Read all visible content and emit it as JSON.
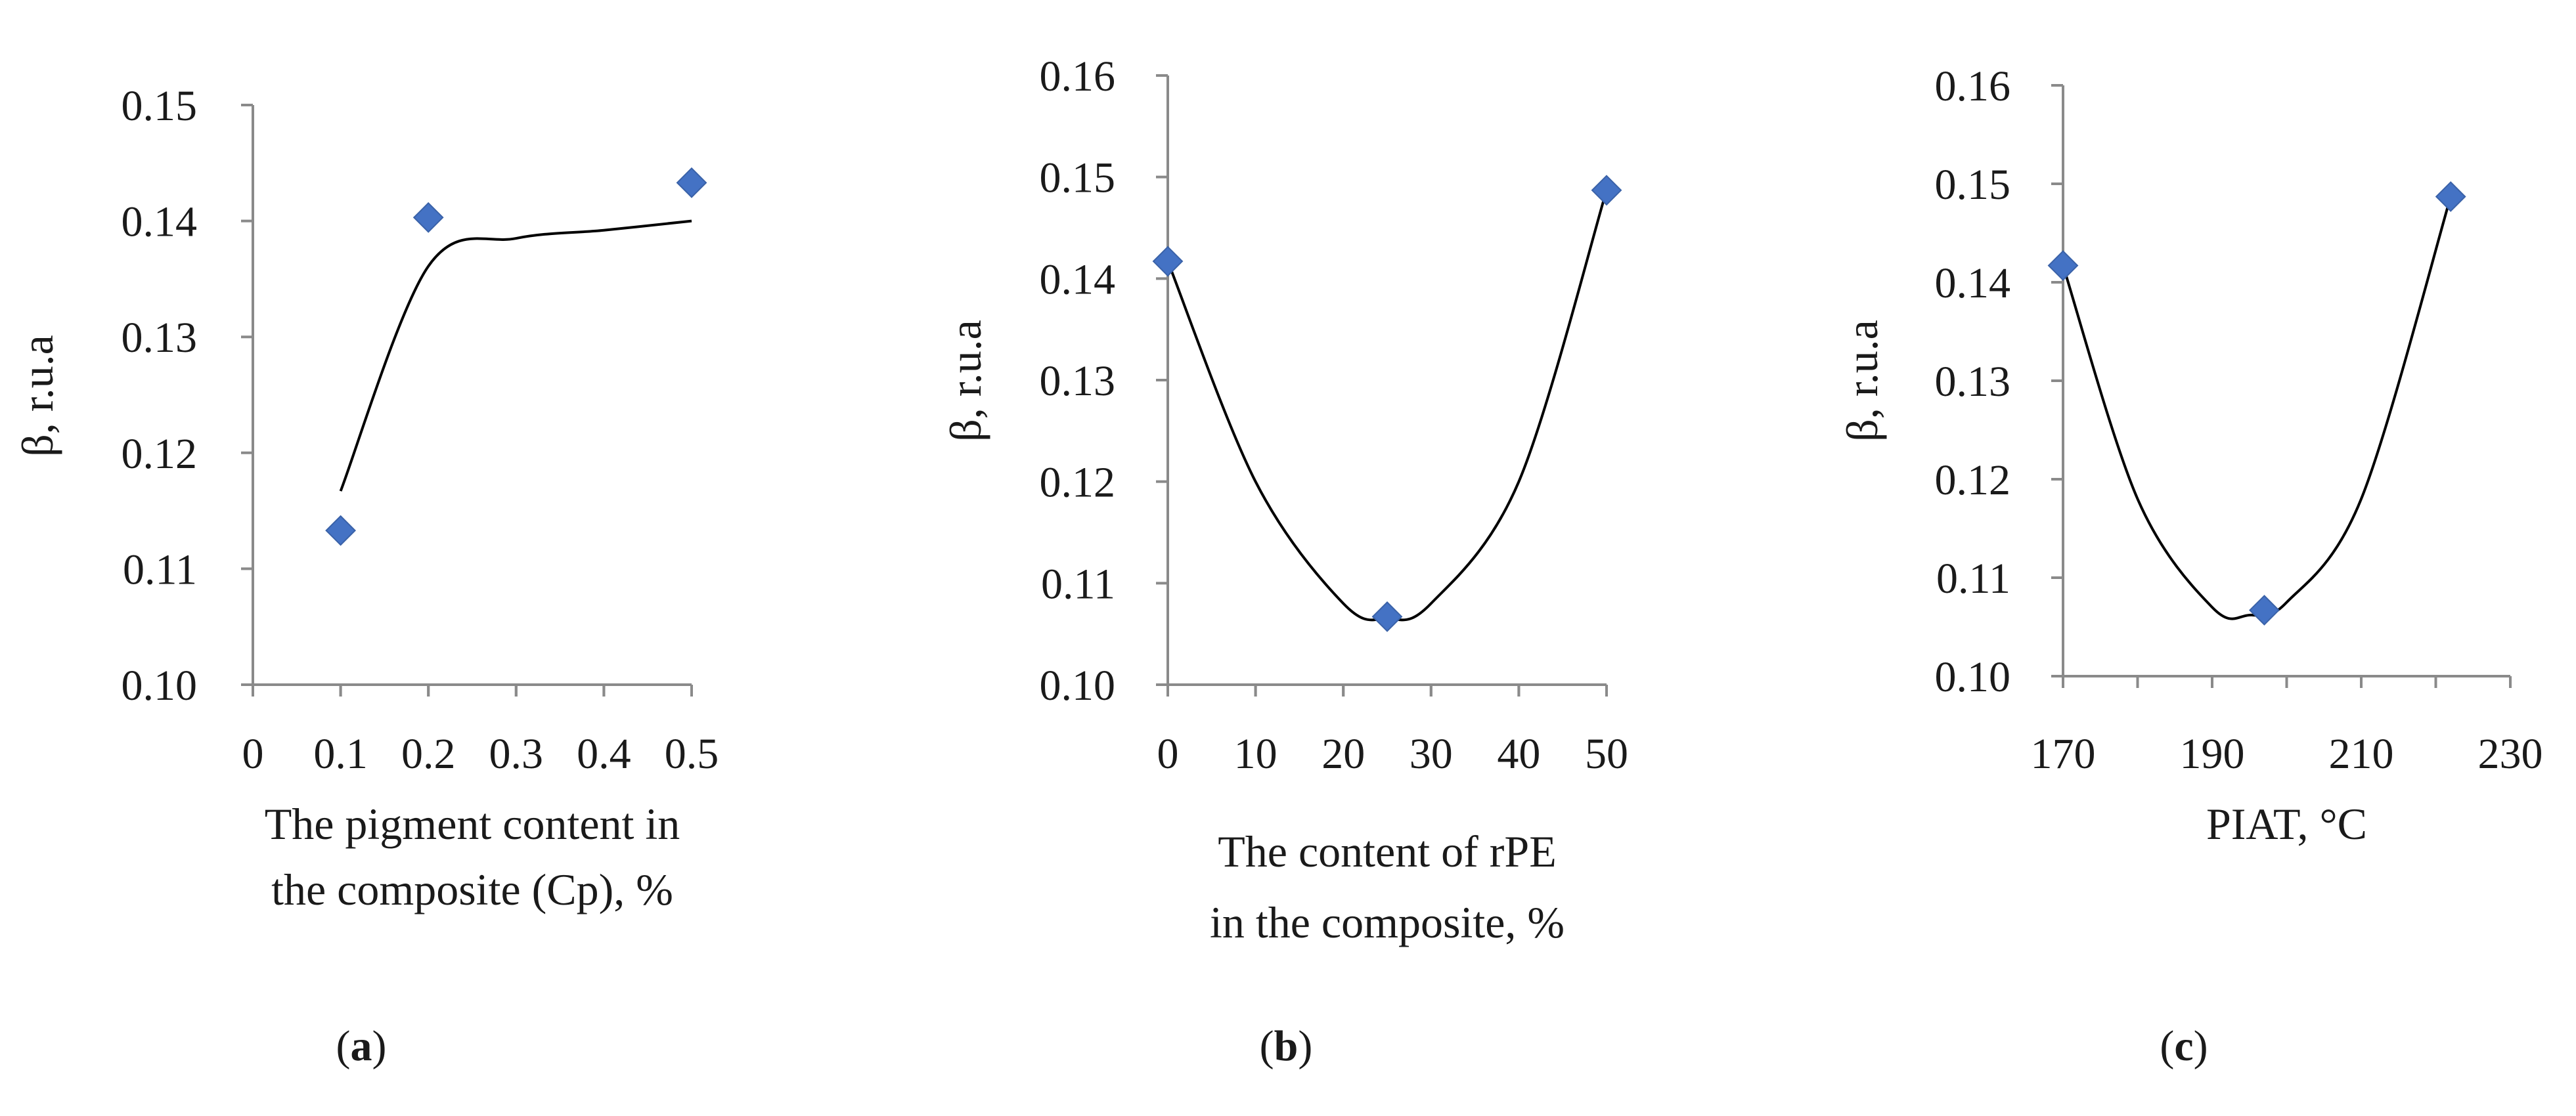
{
  "chart_data": [
    {
      "type": "scatter",
      "panel_label": "a",
      "ylabel": "β, r.u.a",
      "xlabel_lines": [
        "The pigment content in",
        "the composite (Cp), %"
      ],
      "x_ticks": [
        "0",
        "0.1",
        "0.2",
        "0.3",
        "0.4",
        "0.5"
      ],
      "y_ticks": [
        "0.10",
        "0.11",
        "0.12",
        "0.13",
        "0.14",
        "0.15"
      ],
      "xlim": [
        0,
        0.5
      ],
      "ylim": [
        0.1,
        0.15
      ],
      "series": [
        {
          "points": [
            {
              "x": 0.1,
              "y": 0.1133
            },
            {
              "x": 0.2,
              "y": 0.1403
            },
            {
              "x": 0.5,
              "y": 0.1433
            }
          ],
          "color": "#4472C4",
          "marker": "diamond"
        }
      ],
      "trendline": {
        "type": "smooth",
        "points": [
          {
            "x": 0.1,
            "y": 0.1167
          },
          {
            "x": 0.2,
            "y": 0.1361
          },
          {
            "x": 0.3,
            "y": 0.1385
          },
          {
            "x": 0.4,
            "y": 0.1392
          },
          {
            "x": 0.5,
            "y": 0.14
          }
        ]
      },
      "grid": false
    },
    {
      "type": "scatter",
      "panel_label": "b",
      "ylabel": "β, r.u.a",
      "xlabel_lines": [
        "The content of rPE",
        "in the composite, %"
      ],
      "x_ticks": [
        "0",
        "10",
        "20",
        "30",
        "40",
        "50"
      ],
      "y_ticks": [
        "0.10",
        "0.11",
        "0.12",
        "0.13",
        "0.14",
        "0.15",
        "0.16"
      ],
      "xlim": [
        0,
        50
      ],
      "ylim": [
        0.1,
        0.16
      ],
      "series": [
        {
          "points": [
            {
              "x": 0,
              "y": 0.1417
            },
            {
              "x": 25,
              "y": 0.1067
            },
            {
              "x": 50,
              "y": 0.1487
            }
          ],
          "color": "#4472C4",
          "marker": "diamond"
        }
      ],
      "trendline": {
        "type": "smooth",
        "points": [
          {
            "x": 0,
            "y": 0.1417
          },
          {
            "x": 10,
            "y": 0.12
          },
          {
            "x": 20,
            "y": 0.108
          },
          {
            "x": 25,
            "y": 0.1065
          },
          {
            "x": 30,
            "y": 0.108
          },
          {
            "x": 40,
            "y": 0.12
          },
          {
            "x": 50,
            "y": 0.1487
          }
        ]
      },
      "grid": false
    },
    {
      "type": "scatter",
      "panel_label": "c",
      "ylabel": "β, r.u.a",
      "xlabel_lines": [
        "PIAT, °C"
      ],
      "x_ticks": [
        "170",
        "190",
        "210",
        "230"
      ],
      "y_ticks": [
        "0.10",
        "0.11",
        "0.12",
        "0.13",
        "0.14",
        "0.15",
        "0.16"
      ],
      "xlim": [
        170,
        230
      ],
      "ylim": [
        0.1,
        0.16
      ],
      "series": [
        {
          "points": [
            {
              "x": 170,
              "y": 0.1417
            },
            {
              "x": 197,
              "y": 0.1067
            },
            {
              "x": 222,
              "y": 0.1487
            }
          ],
          "color": "#4472C4",
          "marker": "diamond"
        }
      ],
      "trendline": {
        "type": "smooth",
        "points": [
          {
            "x": 170,
            "y": 0.1417
          },
          {
            "x": 180,
            "y": 0.118
          },
          {
            "x": 190,
            "y": 0.107
          },
          {
            "x": 195,
            "y": 0.1062
          },
          {
            "x": 200,
            "y": 0.1075
          },
          {
            "x": 210,
            "y": 0.118
          },
          {
            "x": 222,
            "y": 0.1487
          }
        ]
      },
      "grid": false
    }
  ]
}
